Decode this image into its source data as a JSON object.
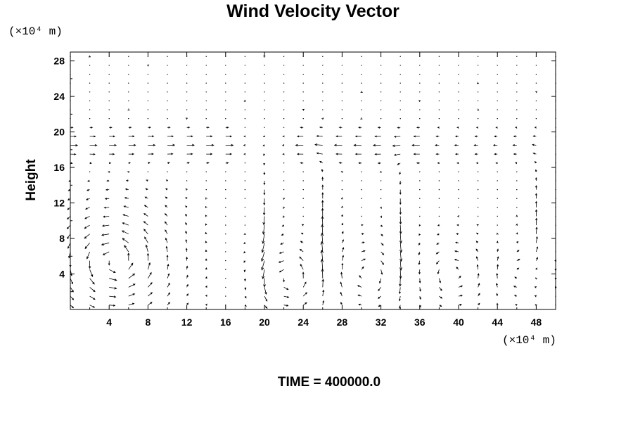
{
  "chart_data": {
    "type": "vector_field",
    "title": "Wind Velocity Vector",
    "ylabel": "Height",
    "xunit": "(×10⁴ m)",
    "yunit": "(×10⁴ m)",
    "footer": "TIME = 400000.0",
    "xlim": [
      0,
      50
    ],
    "ylim": [
      0,
      29
    ],
    "xticks": [
      4,
      8,
      12,
      16,
      20,
      24,
      28,
      32,
      36,
      40,
      44,
      48
    ],
    "yticks": [
      4,
      8,
      12,
      16,
      20,
      24,
      28
    ],
    "grid_x": {
      "start": 0,
      "step": 2,
      "count": 26
    },
    "grid_y": {
      "start": 0.5,
      "step": 1,
      "count": 29
    },
    "vector_scale": 0.13,
    "vortices": [
      {
        "x": 4.5,
        "y": 5.5,
        "strength": 12,
        "radius": 5.5
      },
      {
        "x": 22.5,
        "y": 3.5,
        "strength": 9,
        "radius": 3.5
      },
      {
        "x": 30.5,
        "y": 4.0,
        "strength": -7,
        "radius": 3.5
      },
      {
        "x": 39.5,
        "y": 4.0,
        "strength": 7,
        "radius": 3.5
      },
      {
        "x": 46.0,
        "y": 4.0,
        "strength": -6,
        "radius": 2.5
      }
    ],
    "upper_layer_flow": [
      {
        "x_from": 0,
        "x_to": 17,
        "u": 6
      },
      {
        "x_from": 17,
        "x_to": 24,
        "u": -1
      },
      {
        "x_from": 24,
        "x_to": 38,
        "u": -6
      },
      {
        "x_from": 38,
        "x_to": 50,
        "u": -3
      }
    ],
    "updrafts_downdrafts": [
      {
        "x": 20.5,
        "w": -9
      },
      {
        "x": 26.5,
        "w": 8
      },
      {
        "x": 33.5,
        "w": -8
      },
      {
        "x": 47.5,
        "w": 7
      }
    ]
  }
}
